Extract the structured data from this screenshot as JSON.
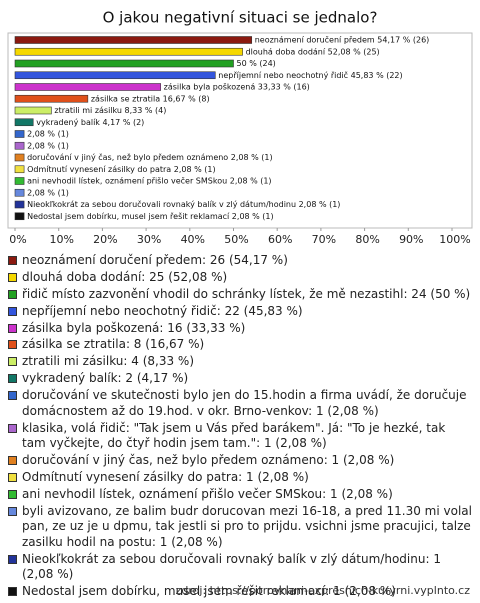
{
  "chart_data": {
    "type": "hbar",
    "title": "O jakou negativní situaci se jednalo?",
    "categories": [
      "neoznámení doručení předem: 26 (54,17 %)",
      "dlouhá doba dodání: 25 (52,08 %)",
      "řidič místo zazvonění vhodil do schránky lístek, že mě nezastihl: 24 (50 %)",
      "nepříjemní nebo neochotný řidič: 22 (45,83 %)",
      "zásilka byla poškozená: 16 (33,33 %)",
      "zásilka se ztratila: 8 (16,67 %)",
      "ztratili mi zásilku: 4 (8,33 %)",
      "vykradený balík: 2 (4,17 %)",
      "doručování ve skutečnosti bylo jen do 15.hodin a firma uvádí, že doručuje domácnostem až do 19.hod. v okr. Brno-venkov: 1 (2,08 %)",
      "klasika, volá řidič: \"Tak jsem u Vás před barákem\". Já: \"To je hezké, tak tam vyčkejte, do čtyř hodin jsem tam.\": 1 (2,08 %)",
      "doručování v jiný čas, než bylo předem oznámeno: 1 (2,08 %)",
      "Odmítnutí vynesení zásilky do patra: 1 (2,08 %)",
      "ani nevhodil lístek, oznámení přišlo večer SMSkou: 1 (2,08 %)",
      "byli avizovano, ze balim budr dorucovan mezi 16-18, a pred 11.30 mi volal pan, ze uz je u dpmu, tak jestli si pro to prijdu. vsichni jsme pracujici, talze zasilku hodil na postu: 1 (2,08 %)",
      "Nieokľkokrát za sebou doručovali rovnaký balík v zlý dátum/hodinu: 1 (2,08 %)",
      "Nedostal jsem dobírku, musel jsem řešit reklamací: 1 (2,08 %)"
    ],
    "values": [
      54.17,
      52.08,
      50,
      45.83,
      33.33,
      16.67,
      8.33,
      4.17,
      2.08,
      2.08,
      2.08,
      2.08,
      2.08,
      2.08,
      2.08,
      2.08
    ],
    "value_labels": [
      "neoznámení doručení předem 54,17 % (26)",
      "dlouhá doba dodání 52,08 % (25)",
      "50 % (24)",
      "nepříjemní nebo neochotný řidič 45,83 % (22)",
      "zásilka byla poškozená 33,33 % (16)",
      "zásilka se ztratila 16,67 % (8)",
      "ztratili mi zásilku 8,33 % (4)",
      "vykradený balík 4,17 % (2)",
      "2,08 % (1)",
      "2,08 % (1)",
      "doručování v jiný čas, než bylo předem oznámeno 2,08 % (1)",
      "Odmítnutí vynesení zásilky do patra 2,08 % (1)",
      "ani nevhodil lístek, oznámení přišlo večer SMSkou 2,08 % (1)",
      "2,08 % (1)",
      "Nieokľkokrát za sebou doručovali rovnaký balík v zlý dátum/hodinu 2,08 % (1)",
      "Nedostal jsem dobírku, musel jsem řešit reklamací 2,08 % (1)"
    ],
    "colors": [
      "#8b1a10",
      "#f5d800",
      "#22a022",
      "#3355dd",
      "#cc33cc",
      "#e0501a",
      "#ccee66",
      "#117766",
      "#3366cc",
      "#aa66cc",
      "#e08020",
      "#f0e040",
      "#33bb33",
      "#6688dd",
      "#223399",
      "#111111"
    ],
    "xlim": [
      0,
      100
    ],
    "xticks": [
      {
        "value": 0,
        "label": "0%"
      },
      {
        "value": 10,
        "label": "10%"
      },
      {
        "value": 20,
        "label": "20%"
      },
      {
        "value": 30,
        "label": "30%"
      },
      {
        "value": 40,
        "label": "40%"
      },
      {
        "value": 50,
        "label": "50%"
      },
      {
        "value": 60,
        "label": "60%"
      },
      {
        "value": 70,
        "label": "70%"
      },
      {
        "value": 80,
        "label": "80%"
      },
      {
        "value": 90,
        "label": "90%"
      },
      {
        "value": 100,
        "label": "100%"
      }
    ],
    "source": "zdroj: https://porovnani-expresnich-kuryrni.vyplnto.cz"
  }
}
